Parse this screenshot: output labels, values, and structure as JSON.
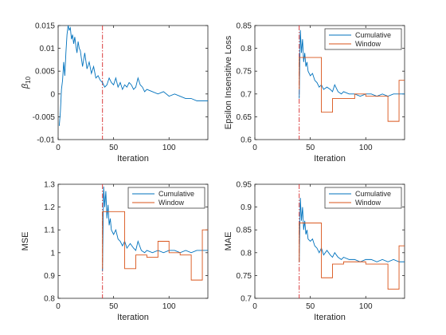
{
  "chart_data": [
    {
      "type": "line",
      "xlabel": "Iteration",
      "ylabel": "β10",
      "ylabel_base": "β",
      "ylabel_sub": "10",
      "xlim": [
        0,
        135
      ],
      "ylim": [
        -0.01,
        0.015
      ],
      "xticks": [
        0,
        50,
        100
      ],
      "xtick_labels": [
        "0",
        "50",
        "100"
      ],
      "yticks": [
        -0.01,
        -0.005,
        0,
        0.005,
        0.01,
        0.015
      ],
      "ytick_labels": [
        "-0.01",
        "-0.005",
        "0",
        "0.005",
        "0.01",
        "0.015"
      ],
      "vline_x": 40,
      "grid": false,
      "legend": [],
      "series": [
        {
          "x": [
            1,
            2,
            3,
            4,
            5,
            6,
            7,
            8,
            9,
            10,
            11,
            12,
            13,
            14,
            15,
            16,
            17,
            18,
            19,
            20,
            22,
            24,
            26,
            28,
            30,
            32,
            34,
            36,
            38,
            40,
            42,
            44,
            46,
            48,
            50,
            52,
            54,
            56,
            58,
            60,
            62,
            64,
            66,
            68,
            70,
            72,
            74,
            76,
            78,
            80,
            85,
            90,
            95,
            100,
            105,
            110,
            115,
            120,
            125,
            130,
            135
          ],
          "values": [
            -0.007,
            -0.004,
            0.001,
            0.003,
            0.007,
            0.004,
            0.009,
            0.013,
            0.015,
            0.014,
            0.0145,
            0.012,
            0.013,
            0.011,
            0.0125,
            0.0105,
            0.009,
            0.0115,
            0.01,
            0.0095,
            0.006,
            0.009,
            0.0055,
            0.007,
            0.0045,
            0.006,
            0.0035,
            0.004,
            0.003,
            0.0025,
            0.0015,
            0.002,
            0.0035,
            0.0025,
            0.002,
            0.0035,
            0.0015,
            0.0025,
            0.001,
            0.002,
            0.0015,
            0.0025,
            0.002,
            0.001,
            0.0015,
            0.0035,
            0.002,
            0.0015,
            0.0005,
            0.001,
            0.0005,
            0.0,
            0.0005,
            -0.0005,
            0.0,
            -0.0005,
            -0.001,
            -0.001,
            -0.0015,
            -0.0015,
            -0.0015
          ]
        }
      ]
    },
    {
      "type": "line",
      "xlabel": "Iteration",
      "ylabel": "Epsilon Insensitive Loss",
      "xlim": [
        0,
        135
      ],
      "ylim": [
        0.6,
        0.85
      ],
      "xticks": [
        0,
        50,
        100
      ],
      "xtick_labels": [
        "0",
        "50",
        "100"
      ],
      "yticks": [
        0.6,
        0.65,
        0.7,
        0.75,
        0.8,
        0.85
      ],
      "ytick_labels": [
        "0.6",
        "0.65",
        "0.7",
        "0.75",
        "0.8",
        "0.85"
      ],
      "vline_x": 40,
      "grid": false,
      "legend": [
        "Cumulative",
        "Window"
      ],
      "legend_position": "top-right",
      "series": [
        {
          "name": "Cumulative",
          "x": [
            40,
            41,
            42,
            43,
            44,
            45,
            46,
            47,
            48,
            50,
            52,
            54,
            56,
            58,
            60,
            62,
            65,
            68,
            70,
            72,
            75,
            78,
            80,
            85,
            90,
            95,
            100,
            105,
            110,
            115,
            120,
            125,
            130,
            135
          ],
          "values": [
            0.69,
            0.84,
            0.79,
            0.82,
            0.77,
            0.79,
            0.76,
            0.77,
            0.75,
            0.74,
            0.745,
            0.73,
            0.725,
            0.715,
            0.72,
            0.71,
            0.715,
            0.71,
            0.705,
            0.72,
            0.705,
            0.7,
            0.705,
            0.7,
            0.7,
            0.695,
            0.7,
            0.7,
            0.695,
            0.7,
            0.695,
            0.7,
            0.7,
            0.7
          ]
        },
        {
          "name": "Window",
          "x": [
            40,
            40,
            50,
            50,
            60,
            60,
            70,
            70,
            80,
            80,
            90,
            90,
            100,
            100,
            110,
            110,
            120,
            120,
            130,
            130,
            135
          ],
          "values": [
            0.71,
            0.78,
            0.78,
            0.78,
            0.78,
            0.66,
            0.66,
            0.69,
            0.69,
            0.69,
            0.69,
            0.7,
            0.7,
            0.695,
            0.695,
            0.695,
            0.695,
            0.64,
            0.64,
            0.73,
            0.73
          ]
        }
      ]
    },
    {
      "type": "line",
      "xlabel": "Iteration",
      "ylabel": "MSE",
      "xlim": [
        0,
        135
      ],
      "ylim": [
        0.8,
        1.3
      ],
      "xticks": [
        0,
        50,
        100
      ],
      "xtick_labels": [
        "0",
        "50",
        "100"
      ],
      "yticks": [
        0.8,
        0.9,
        1.0,
        1.1,
        1.2,
        1.3
      ],
      "ytick_labels": [
        "0.8",
        "0.9",
        "1",
        "1.1",
        "1.2",
        "1.3"
      ],
      "vline_x": 40,
      "grid": false,
      "legend": [
        "Cumulative",
        "Window"
      ],
      "legend_position": "top-right",
      "series": [
        {
          "name": "Cumulative",
          "x": [
            40,
            41,
            42,
            43,
            44,
            45,
            46,
            47,
            48,
            50,
            52,
            54,
            56,
            58,
            60,
            62,
            65,
            68,
            70,
            72,
            75,
            78,
            80,
            85,
            90,
            95,
            100,
            105,
            110,
            115,
            120,
            125,
            130,
            135
          ],
          "values": [
            0.92,
            1.29,
            1.2,
            1.27,
            1.15,
            1.21,
            1.12,
            1.15,
            1.1,
            1.08,
            1.1,
            1.06,
            1.05,
            1.03,
            1.05,
            1.02,
            1.04,
            1.02,
            1.01,
            1.05,
            1.01,
            1.0,
            1.01,
            1.0,
            1.01,
            1.0,
            1.01,
            1.01,
            1.0,
            1.01,
            1.0,
            1.01,
            1.01,
            1.01
          ]
        },
        {
          "name": "Window",
          "x": [
            40,
            40,
            50,
            50,
            60,
            60,
            70,
            70,
            80,
            80,
            90,
            90,
            100,
            100,
            110,
            110,
            120,
            120,
            130,
            130,
            135
          ],
          "values": [
            0.93,
            1.18,
            1.18,
            1.18,
            1.18,
            0.93,
            0.93,
            0.99,
            0.99,
            0.98,
            0.98,
            1.05,
            1.05,
            1.0,
            1.0,
            0.99,
            0.99,
            0.88,
            0.88,
            1.1,
            1.1
          ]
        }
      ]
    },
    {
      "type": "line",
      "xlabel": "Iteration",
      "ylabel": "MAE",
      "xlim": [
        0,
        135
      ],
      "ylim": [
        0.7,
        0.95
      ],
      "xticks": [
        0,
        50,
        100
      ],
      "xtick_labels": [
        "0",
        "50",
        "100"
      ],
      "yticks": [
        0.7,
        0.75,
        0.8,
        0.85,
        0.9,
        0.95
      ],
      "ytick_labels": [
        "0.7",
        "0.75",
        "0.8",
        "0.85",
        "0.9",
        "0.95"
      ],
      "vline_x": 40,
      "grid": false,
      "legend": [
        "Cumulative",
        "Window"
      ],
      "legend_position": "top-right",
      "series": [
        {
          "name": "Cumulative",
          "x": [
            40,
            41,
            42,
            43,
            44,
            45,
            46,
            47,
            48,
            50,
            52,
            54,
            56,
            58,
            60,
            62,
            65,
            68,
            70,
            72,
            75,
            78,
            80,
            85,
            90,
            95,
            100,
            105,
            110,
            115,
            120,
            125,
            130,
            135
          ],
          "values": [
            0.78,
            0.92,
            0.87,
            0.9,
            0.85,
            0.87,
            0.84,
            0.85,
            0.83,
            0.825,
            0.83,
            0.815,
            0.81,
            0.8,
            0.81,
            0.795,
            0.805,
            0.795,
            0.79,
            0.8,
            0.79,
            0.785,
            0.79,
            0.785,
            0.785,
            0.78,
            0.785,
            0.785,
            0.78,
            0.785,
            0.78,
            0.785,
            0.78,
            0.78
          ]
        },
        {
          "name": "Window",
          "x": [
            40,
            40,
            50,
            50,
            60,
            60,
            70,
            70,
            80,
            80,
            90,
            90,
            100,
            100,
            110,
            110,
            120,
            120,
            130,
            130,
            135
          ],
          "values": [
            0.78,
            0.865,
            0.865,
            0.865,
            0.865,
            0.745,
            0.745,
            0.775,
            0.775,
            0.78,
            0.78,
            0.78,
            0.78,
            0.775,
            0.775,
            0.775,
            0.775,
            0.72,
            0.72,
            0.815,
            0.815
          ]
        }
      ]
    }
  ],
  "colors": {
    "cumulative": "#0072bd",
    "window": "#d95319",
    "vline": "#d62728"
  }
}
